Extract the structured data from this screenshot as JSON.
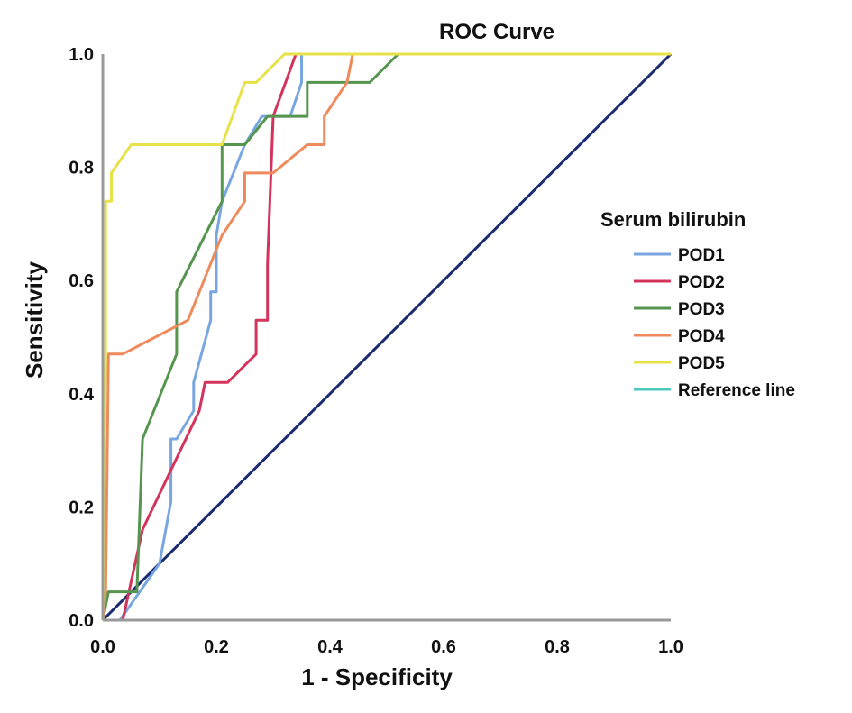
{
  "chart_data": {
    "type": "line",
    "title": "ROC Curve",
    "xlabel": "1 - Specificity",
    "ylabel": "Sensitivity",
    "xlim": [
      0,
      1
    ],
    "ylim": [
      0,
      1
    ],
    "x_ticks": [
      "0.0",
      "0.2",
      "0.4",
      "0.6",
      "0.8",
      "1.0"
    ],
    "y_ticks": [
      "0.0",
      "0.2",
      "0.4",
      "0.6",
      "0.8",
      "1.0"
    ],
    "grid": false,
    "legend": {
      "title": "Serum bilirubin",
      "placement": "right"
    },
    "series": [
      {
        "name": "POD1",
        "color": "#7aa6e0",
        "x": [
          0,
          0.03,
          0.1,
          0.12,
          0.12,
          0.13,
          0.16,
          0.16,
          0.19,
          0.19,
          0.2,
          0.2,
          0.21,
          0.25,
          0.28,
          0.33,
          0.35,
          0.35,
          1.0
        ],
        "y": [
          0,
          0,
          0.1,
          0.21,
          0.32,
          0.32,
          0.37,
          0.42,
          0.53,
          0.58,
          0.58,
          0.68,
          0.74,
          0.84,
          0.89,
          0.89,
          0.95,
          1.0,
          1.0
        ]
      },
      {
        "name": "POD2",
        "color": "#d4335b",
        "x": [
          0,
          0.035,
          0.07,
          0.17,
          0.18,
          0.22,
          0.27,
          0.27,
          0.29,
          0.29,
          0.3,
          0.34,
          0.34,
          1.0
        ],
        "y": [
          0,
          0,
          0.16,
          0.37,
          0.42,
          0.42,
          0.47,
          0.53,
          0.53,
          0.63,
          0.89,
          1.0,
          1.0,
          1.0
        ]
      },
      {
        "name": "POD3",
        "color": "#55954f",
        "x": [
          0,
          0.01,
          0.06,
          0.07,
          0.13,
          0.13,
          0.21,
          0.21,
          0.25,
          0.29,
          0.36,
          0.36,
          0.47,
          0.52,
          1.0
        ],
        "y": [
          0,
          0.05,
          0.05,
          0.32,
          0.47,
          0.58,
          0.74,
          0.84,
          0.84,
          0.89,
          0.89,
          0.95,
          0.95,
          1.0,
          1.0
        ]
      },
      {
        "name": "POD4",
        "color": "#ee8a5b",
        "x": [
          0,
          0.005,
          0.005,
          0.01,
          0.035,
          0.15,
          0.21,
          0.25,
          0.25,
          0.3,
          0.36,
          0.39,
          0.39,
          0.43,
          0.44,
          1.0
        ],
        "y": [
          0,
          0.05,
          0.05,
          0.47,
          0.47,
          0.53,
          0.68,
          0.74,
          0.79,
          0.79,
          0.84,
          0.84,
          0.89,
          0.95,
          1.0,
          1.0
        ]
      },
      {
        "name": "POD5",
        "color": "#e7e24a",
        "x": [
          0,
          0.005,
          0.005,
          0.015,
          0.015,
          0.05,
          0.21,
          0.25,
          0.27,
          0.32,
          1.0
        ],
        "y": [
          0,
          0.47,
          0.74,
          0.74,
          0.79,
          0.84,
          0.84,
          0.95,
          0.95,
          1.0,
          1.0
        ]
      },
      {
        "name": "Reference line",
        "color": "#4cc8c0",
        "drawn_color": "#1b2b72",
        "x": [
          0,
          1
        ],
        "y": [
          0,
          1
        ]
      }
    ]
  }
}
